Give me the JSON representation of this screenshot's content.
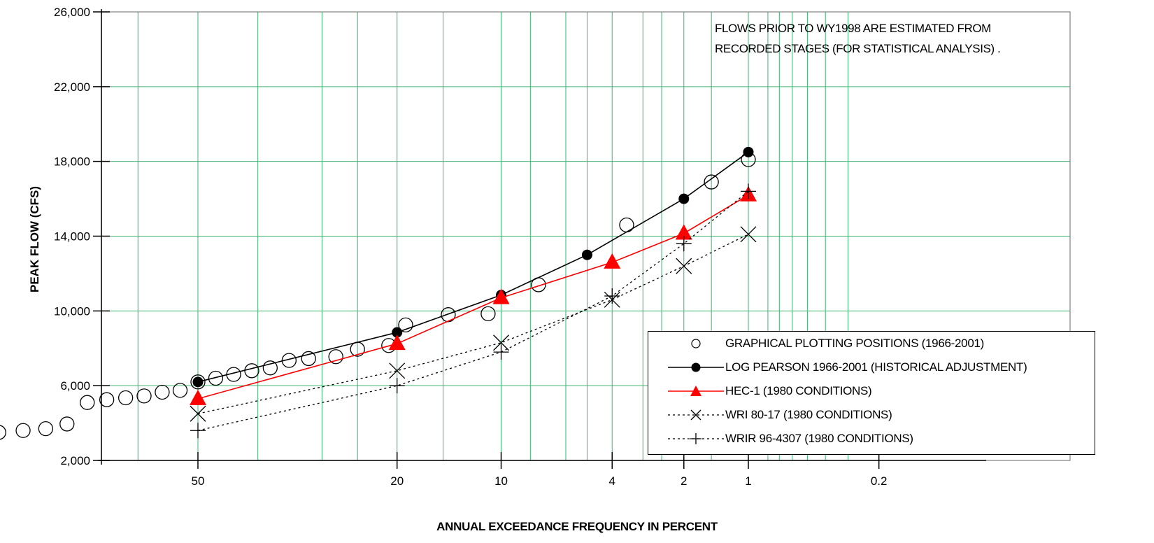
{
  "chart_data": {
    "type": "scatter",
    "x_scale": "probability",
    "xlabel": "ANNUAL EXCEEDANCE FREQUENCY IN PERCENT",
    "ylabel": "PEAK FLOW (CFS)",
    "ylim": [
      2000,
      26000
    ],
    "y_ticks": [
      "2,000",
      "6,000",
      "10,000",
      "14,000",
      "18,000",
      "22,000",
      "26,000"
    ],
    "y_tick_values": [
      2000,
      6000,
      10000,
      14000,
      18000,
      22000,
      26000
    ],
    "x_ticks": [
      "50",
      "20",
      "10",
      "4",
      "2",
      "1",
      "0.2"
    ],
    "x_tick_values": [
      50,
      20,
      10,
      4,
      2,
      1,
      0.2
    ],
    "grid": true,
    "legend_position": "bottom-right",
    "annotation": [
      "FLOWS PRIOR TO WY1998 ARE ESTIMATED FROM",
      "RECORDED STAGES (FOR STATISTICAL ANALYSIS) ."
    ],
    "series": [
      {
        "name": "GRAPHICAL PLOTTING POSITIONS (1966-2001)",
        "marker": "open-circle",
        "line": "none",
        "color": "#000000",
        "points": [
          [
            83,
            3400
          ],
          [
            80,
            3500
          ],
          [
            77,
            3600
          ],
          [
            74,
            3700
          ],
          [
            71,
            3950
          ],
          [
            68,
            5100
          ],
          [
            65,
            5250
          ],
          [
            62,
            5350
          ],
          [
            59,
            5450
          ],
          [
            56,
            5650
          ],
          [
            53,
            5750
          ],
          [
            50,
            6200
          ],
          [
            47,
            6400
          ],
          [
            44,
            6600
          ],
          [
            41,
            6800
          ],
          [
            38,
            6950
          ],
          [
            35,
            7350
          ],
          [
            32,
            7450
          ],
          [
            28,
            7550
          ],
          [
            25,
            7950
          ],
          [
            21,
            8150
          ],
          [
            19,
            9250
          ],
          [
            14.5,
            9800
          ],
          [
            11,
            9850
          ],
          [
            7.5,
            11400
          ],
          [
            3.5,
            14600
          ],
          [
            1.5,
            16900
          ],
          [
            1,
            18100
          ]
        ]
      },
      {
        "name": "LOG PEARSON 1966-2001 (HISTORICAL ADJUSTMENT)",
        "marker": "filled-circle",
        "line": "solid",
        "color": "#000000",
        "points": [
          [
            50,
            6200
          ],
          [
            20,
            8850
          ],
          [
            10,
            10850
          ],
          [
            5,
            13000
          ],
          [
            2,
            16000
          ],
          [
            1,
            18500
          ]
        ]
      },
      {
        "name": "HEC-1 (1980 CONDITIONS)",
        "marker": "filled-triangle",
        "line": "solid",
        "color": "#ff0000",
        "points": [
          [
            50,
            5300
          ],
          [
            20,
            8250
          ],
          [
            10,
            10700
          ],
          [
            4,
            12600
          ],
          [
            2,
            14150
          ],
          [
            1,
            16200
          ]
        ]
      },
      {
        "name": "WRI 80-17 (1980 CONDITIONS)",
        "marker": "x",
        "line": "dotted",
        "color": "#000000",
        "points": [
          [
            50,
            4500
          ],
          [
            20,
            6800
          ],
          [
            10,
            8300
          ],
          [
            4,
            10600
          ],
          [
            2,
            12400
          ],
          [
            1,
            14100
          ]
        ]
      },
      {
        "name": "WRIR 96-4307 (1980 CONDITIONS)",
        "marker": "plus",
        "line": "dotted",
        "color": "#000000",
        "points": [
          [
            50,
            3600
          ],
          [
            20,
            6000
          ],
          [
            10,
            7800
          ],
          [
            4,
            10800
          ],
          [
            2,
            13600
          ],
          [
            1,
            16400
          ]
        ]
      }
    ],
    "colors": {
      "grid": "#3cb371",
      "frame": "#808080",
      "axis": "#000000",
      "hec": "#ff0000"
    }
  }
}
